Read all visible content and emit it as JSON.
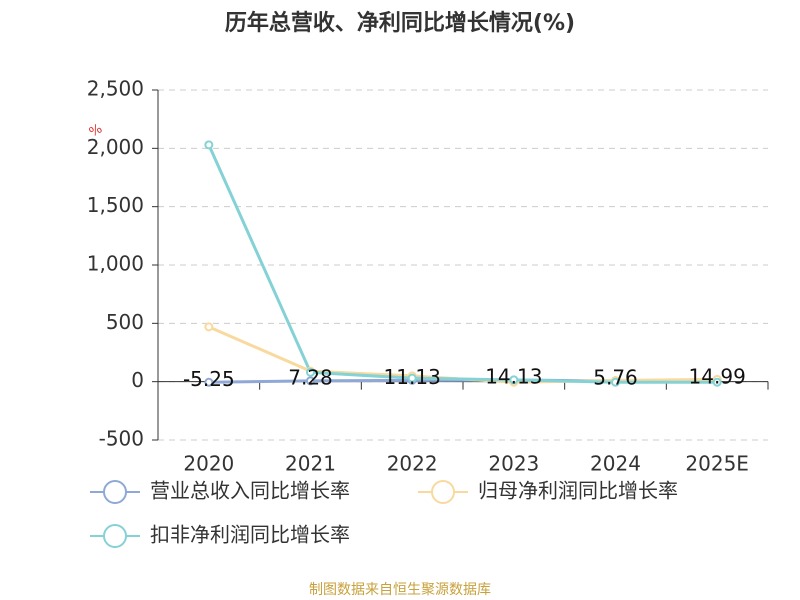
{
  "chart_data": {
    "type": "line",
    "title": "历年总营收、净利同比增长情况(%)",
    "y_unit": "%",
    "categories": [
      "2020",
      "2021",
      "2022",
      "2023",
      "2024",
      "2025E"
    ],
    "series": [
      {
        "name": "营业总收入同比增长率",
        "color": "#8fa8d6",
        "values": [
          -5.25,
          7.28,
          11.13,
          14.13,
          5.76,
          14.99
        ]
      },
      {
        "name": "归母净利润同比增长率",
        "color": "#f8d99e",
        "values": [
          470,
          90,
          50,
          -5,
          10,
          20
        ]
      },
      {
        "name": "扣非净利润同比增长率",
        "color": "#84d2d5",
        "values": [
          2030,
          80,
          30,
          15,
          -5,
          -5
        ]
      }
    ],
    "ylim": [
      -500,
      2500
    ],
    "yticks": [
      -500,
      0,
      500,
      {
        "value": 1000,
        "label": "1,000"
      },
      {
        "value": 1500,
        "label": "1,500"
      },
      {
        "value": 2000,
        "label": "2,000"
      },
      {
        "value": 2500,
        "label": "2,500"
      }
    ],
    "grid": true,
    "source": "制图数据来自恒生聚源数据库"
  }
}
